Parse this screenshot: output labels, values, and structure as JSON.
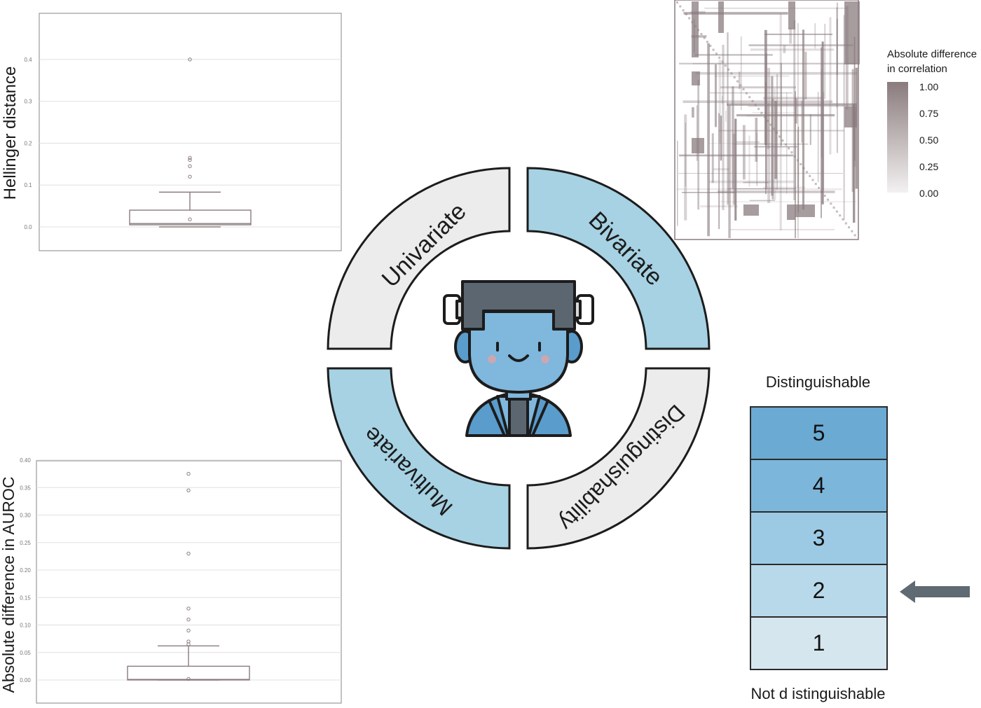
{
  "hellinger": {
    "ylabel": "Hellinger distance",
    "ticks": [
      "0.0",
      "0.1",
      "0.2",
      "0.3",
      "0.4"
    ],
    "ylim": [
      0,
      0.45
    ],
    "box": {
      "q1": 0.005,
      "median": 0.008,
      "q3": 0.04,
      "whisker_low": 0.0,
      "whisker_high": 0.083
    },
    "outliers": [
      0.4,
      0.165,
      0.16,
      0.145,
      0.12,
      0.018
    ]
  },
  "auroc": {
    "ylabel": "Absolute difference in AUROC",
    "ticks": [
      "0.00",
      "0.05",
      "0.10",
      "0.15",
      "0.20",
      "0.25",
      "0.30",
      "0.35",
      "0.40"
    ],
    "ylim": [
      0,
      0.4
    ],
    "box": {
      "q1": 0.0,
      "median": 0.001,
      "q3": 0.025,
      "whisker_low": 0.0,
      "whisker_high": 0.062
    },
    "outliers": [
      0.375,
      0.345,
      0.23,
      0.13,
      0.11,
      0.09,
      0.07,
      0.065,
      0.002
    ]
  },
  "wheel": {
    "segments": [
      {
        "label": "Univariate",
        "color": "#ececec"
      },
      {
        "label": "Bivariate",
        "color": "#a6d2e3"
      },
      {
        "label": "Multivariate",
        "color": "#a6d2e3"
      },
      {
        "label": "Distinguishability",
        "color": "#ececec"
      }
    ]
  },
  "heatmap": {
    "legend_title_line1": "Absolute difference",
    "legend_title_line2": "in correlation",
    "legend_ticks": [
      "1.00",
      "0.75",
      "0.50",
      "0.25",
      "0.00"
    ],
    "color_high": "#8a7b7d",
    "color_low": "#f3f1f1"
  },
  "scale": {
    "top_label": "Distinguishable",
    "bottom_label": "Not d istinguishable",
    "levels": [
      {
        "value": "5",
        "color": "#6aaad3"
      },
      {
        "value": "4",
        "color": "#7db6db"
      },
      {
        "value": "3",
        "color": "#9ccae4"
      },
      {
        "value": "2",
        "color": "#b8d9ea"
      },
      {
        "value": "1",
        "color": "#d5e6ef"
      }
    ],
    "selected": "2",
    "arrow_color": "#5f6a72"
  }
}
